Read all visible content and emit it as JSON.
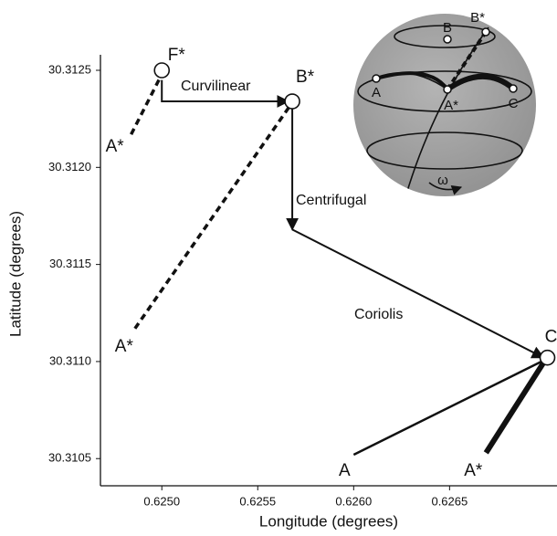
{
  "chart_data": {
    "type": "vector",
    "xlabel": "Longitude (degrees)",
    "ylabel": "Latitude (degrees)",
    "xlim": [
      0.62468,
      0.62706
    ],
    "ylim": [
      30.31036,
      30.31258
    ],
    "xticks": [
      {
        "value": 0.625,
        "label": "0.6250"
      },
      0.6255,
      {
        "value": 0.626,
        "label": "0.6260"
      },
      0.6265
    ],
    "yticks": [
      {
        "value": 30.3105,
        "label": "30.3105"
      },
      {
        "value": 30.311,
        "label": "30.3110"
      },
      30.3115,
      {
        "value": 30.312,
        "label": "30.3120"
      },
      30.3125
    ],
    "markers": [
      {
        "label": "F*",
        "x": 0.625,
        "y": 30.3125,
        "circle": true
      },
      {
        "label": "B*",
        "x": 0.62568,
        "y": 30.31234,
        "circle": true
      },
      {
        "label": "C",
        "x": 0.62701,
        "y": 30.31102,
        "circle": true
      },
      {
        "label": "A",
        "x": 0.626,
        "y": 30.31052,
        "circle": false
      },
      {
        "label": "A*",
        "x": 0.62669,
        "y": 30.31053,
        "circle": false
      },
      {
        "label": "A*",
        "x": 0.62484,
        "y": 30.31217,
        "circle": false
      },
      {
        "label": "A*",
        "x": 0.62486,
        "y": 30.31117,
        "circle": false
      }
    ],
    "vectors": [
      {
        "name": "Curvilinear",
        "x": [
          0.625,
          0.625,
          0.62566
        ],
        "y": [
          30.31245,
          30.31234,
          30.31234
        ]
      },
      {
        "name": "Centrifugal",
        "x": [
          0.62568,
          0.62568
        ],
        "y": [
          30.3123,
          30.31168
        ]
      },
      {
        "name": "Coriolis",
        "x": [
          0.62568,
          0.62699
        ],
        "y": [
          30.31168,
          30.31102
        ]
      }
    ],
    "segments": [
      {
        "style": "dashed",
        "x": [
          0.62484,
          0.625
        ],
        "y": [
          30.31217,
          30.31248
        ]
      },
      {
        "style": "dashed",
        "x": [
          0.62486,
          0.62567
        ],
        "y": [
          30.31117,
          30.31232
        ]
      },
      {
        "style": "thin",
        "x": [
          0.626,
          0.627
        ],
        "y": [
          30.31052,
          30.31101
        ]
      },
      {
        "style": "thick",
        "x": [
          0.62669,
          0.627
        ],
        "y": [
          30.31053,
          30.31101
        ]
      }
    ]
  },
  "inset": {
    "labels": [
      "B",
      "B*",
      "A",
      "A*",
      "C",
      "ω"
    ]
  }
}
